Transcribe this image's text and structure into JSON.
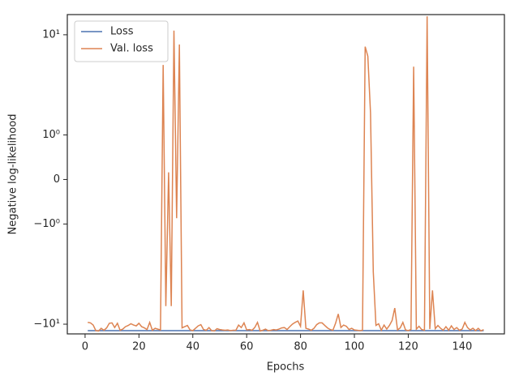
{
  "chart_data": {
    "type": "line",
    "x_label": "Epochs",
    "y_label": "Negative log-likelihood",
    "yscale": "symlog",
    "linthresh": 1,
    "linscale": 0.4,
    "legend": "upper left",
    "xlim": [
      -6.6,
      155.7
    ],
    "xticks": [
      0,
      20,
      40,
      60,
      80,
      100,
      120,
      140
    ],
    "ylim": [
      -12.5,
      15.9
    ],
    "yticks": [
      {
        "value": -10,
        "label": "−10¹"
      },
      {
        "value": -1,
        "label": "−10⁰"
      },
      0,
      {
        "value": 1,
        "label": "10⁰"
      },
      {
        "value": 10,
        "label": "10¹"
      }
    ],
    "x": [
      1,
      2,
      3,
      4,
      5,
      6,
      7,
      8,
      9,
      10,
      11,
      12,
      13,
      14,
      15,
      16,
      17,
      18,
      19,
      20,
      21,
      22,
      23,
      24,
      25,
      26,
      27,
      28,
      29,
      30,
      31,
      32,
      33,
      34,
      35,
      36,
      37,
      38,
      39,
      40,
      41,
      42,
      43,
      44,
      45,
      46,
      47,
      48,
      49,
      50,
      51,
      52,
      53,
      54,
      55,
      56,
      57,
      58,
      59,
      60,
      61,
      62,
      63,
      64,
      65,
      66,
      67,
      68,
      69,
      70,
      71,
      72,
      73,
      74,
      75,
      76,
      77,
      78,
      79,
      80,
      81,
      82,
      83,
      84,
      85,
      86,
      87,
      88,
      89,
      90,
      91,
      92,
      93,
      94,
      95,
      96,
      97,
      98,
      99,
      100,
      101,
      102,
      103,
      104,
      105,
      106,
      107,
      108,
      109,
      110,
      111,
      112,
      113,
      114,
      115,
      116,
      117,
      118,
      119,
      120,
      121,
      122,
      123,
      124,
      125,
      126,
      127,
      128,
      129,
      130,
      131,
      132,
      133,
      134,
      135,
      136,
      137,
      138,
      139,
      140,
      141,
      142,
      143,
      144,
      145,
      146,
      147,
      148
    ],
    "series": [
      {
        "name": "Loss",
        "color": "#4c72b0",
        "values": [
          -11.6,
          -11.6,
          -11.6,
          -11.6,
          -11.6,
          -11.6,
          -11.6,
          -11.6,
          -11.6,
          -11.6,
          -11.6,
          -11.6,
          -11.6,
          -11.6,
          -11.6,
          -11.6,
          -11.6,
          -11.6,
          -11.6,
          -11.6,
          -11.6,
          -11.6,
          -11.6,
          -11.6,
          -11.6,
          -11.6,
          -11.6,
          -11.6,
          -11.6,
          -11.6,
          -11.6,
          -11.6,
          -11.6,
          -11.6,
          -11.6,
          -11.6,
          -11.6,
          -11.6,
          -11.6,
          -11.6,
          -11.6,
          -11.6,
          -11.6,
          -11.6,
          -11.6,
          -11.6,
          -11.6,
          -11.6,
          -11.6,
          -11.6,
          -11.6,
          -11.6,
          -11.6,
          -11.6,
          -11.6,
          -11.6,
          -11.6,
          -11.6,
          -11.6,
          -11.6,
          -11.6,
          -11.6,
          -11.6,
          -11.6,
          -11.6,
          -11.6,
          -11.6,
          -11.6,
          -11.6,
          -11.6,
          -11.6,
          -11.6,
          -11.6,
          -11.6,
          -11.6,
          -11.6,
          -11.6,
          -11.6,
          -11.6,
          -11.6,
          -11.6,
          -11.6,
          -11.6,
          -11.6,
          -11.6,
          -11.6,
          -11.6,
          -11.6,
          -11.6,
          -11.6,
          -11.6,
          -11.6,
          -11.6,
          -11.6,
          -11.6,
          -11.6,
          -11.6,
          -11.6,
          -11.6,
          -11.6,
          -11.6,
          -11.6,
          -11.6,
          -11.6,
          -11.6,
          -11.6,
          -11.6,
          -11.6,
          -11.6,
          -11.6,
          -11.6,
          -11.6,
          -11.6,
          -11.6,
          -11.6,
          -11.6,
          -11.6,
          -11.6,
          -11.6,
          -11.6,
          -11.6,
          -11.6,
          -11.6,
          -11.6,
          -11.6,
          -11.6,
          -11.6,
          -11.6,
          -11.6,
          -11.6,
          -11.6,
          -11.6,
          -11.6,
          -11.6,
          -11.6,
          -11.6,
          -11.6,
          -11.6,
          -11.6,
          -11.6,
          -11.6,
          -11.6,
          -11.6,
          -11.6,
          -11.6,
          -11.6,
          -11.6,
          -11.6
        ]
      },
      {
        "name": "Val. loss",
        "color": "#dd8452",
        "values": [
          -9.6,
          -9.7,
          -10.2,
          -11.6,
          -11.7,
          -11.0,
          -11.5,
          -10.9,
          -9.8,
          -9.7,
          -10.8,
          -9.8,
          -11.5,
          -11.2,
          -10.6,
          -10.3,
          -9.9,
          -10.2,
          -10.4,
          -9.8,
          -10.6,
          -10.9,
          -11.3,
          -9.6,
          -11.5,
          -11.0,
          -11.2,
          -11.4,
          5.0,
          -6.6,
          0.16,
          -6.6,
          11,
          -0.87,
          8.0,
          -10.9,
          -10.6,
          -10.3,
          -11.4,
          -11.6,
          -11.0,
          -10.4,
          -10.1,
          -11.3,
          -11.5,
          -10.8,
          -11.6,
          -11.7,
          -11.1,
          -11.3,
          -11.4,
          -11.5,
          -11.4,
          -11.6,
          -11.5,
          -11.5,
          -10.2,
          -10.8,
          -9.7,
          -11.4,
          -11.3,
          -11.5,
          -10.8,
          -9.6,
          -11.7,
          -11.5,
          -11.2,
          -11.6,
          -11.5,
          -11.3,
          -11.4,
          -11.2,
          -10.9,
          -10.8,
          -11.3,
          -10.6,
          -10.0,
          -9.6,
          -9.3,
          -10.5,
          -4.6,
          -11.0,
          -11.2,
          -11.5,
          -11.0,
          -10.1,
          -9.7,
          -9.7,
          -10.3,
          -10.9,
          -11.3,
          -11.5,
          -9.8,
          -7.9,
          -10.8,
          -10.2,
          -10.5,
          -11.3,
          -11.0,
          -11.4,
          -11.5,
          -11.6,
          -11.5,
          7.6,
          6.1,
          1.65,
          -3.0,
          -10.3,
          -9.9,
          -11.5,
          -10.2,
          -11.2,
          -10.3,
          -9.2,
          -6.9,
          -11.4,
          -10.9,
          -9.6,
          -11.4,
          -11.6,
          -11.3,
          4.8,
          -11.2,
          -10.5,
          -11.3,
          -11.5,
          15.3,
          -11.2,
          -4.6,
          -11.1,
          -10.3,
          -11.0,
          -11.5,
          -10.6,
          -11.5,
          -10.4,
          -11.3,
          -10.8,
          -11.5,
          -11.2,
          -9.6,
          -10.8,
          -11.4,
          -11.0,
          -11.6,
          -11.0,
          -11.7,
          -11.3
        ]
      }
    ]
  }
}
